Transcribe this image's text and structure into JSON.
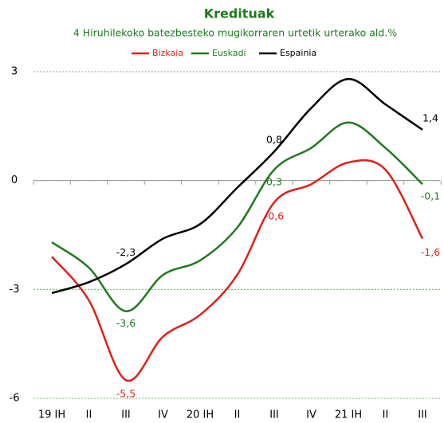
{
  "chart_data": {
    "type": "line",
    "title": "Kredituak",
    "subtitle": "4 Hiruhilekoko batezbesteko mugikorraren urtetik urterako ald.%",
    "categories": [
      "19 IH",
      "II",
      "III",
      "IV",
      "20 IH",
      "II",
      "III",
      "IV",
      "21 IH",
      "II",
      "III"
    ],
    "series": [
      {
        "name": "Bizkaia",
        "color": "#e0201b",
        "values": [
          -2.1,
          -3.3,
          -5.5,
          -4.3,
          -3.7,
          -2.6,
          -0.6,
          -0.1,
          0.5,
          0.3,
          -1.6
        ],
        "value_labels": [
          null,
          null,
          "-5,5",
          null,
          null,
          null,
          "-0,6",
          null,
          null,
          null,
          "-1,6"
        ]
      },
      {
        "name": "Euskadi",
        "color": "#1e7a1e",
        "values": [
          -1.7,
          -2.4,
          -3.6,
          -2.6,
          -2.2,
          -1.3,
          0.3,
          0.9,
          1.6,
          0.9,
          -0.1
        ],
        "value_labels": [
          null,
          null,
          "-3,6",
          null,
          null,
          null,
          "0,3",
          null,
          null,
          null,
          "-0,1"
        ]
      },
      {
        "name": "Espainia",
        "color": "#000000",
        "values": [
          -3.1,
          -2.8,
          -2.3,
          -1.6,
          -1.2,
          -0.2,
          0.8,
          2.0,
          2.8,
          2.1,
          1.4
        ],
        "value_labels": [
          null,
          null,
          "-2,3",
          null,
          null,
          null,
          "0,8",
          null,
          null,
          null,
          "1,4"
        ]
      }
    ],
    "ylim": [
      -6,
      3
    ],
    "yticks": [
      -6,
      -3,
      0,
      3
    ],
    "grid": true,
    "legend": "top"
  }
}
